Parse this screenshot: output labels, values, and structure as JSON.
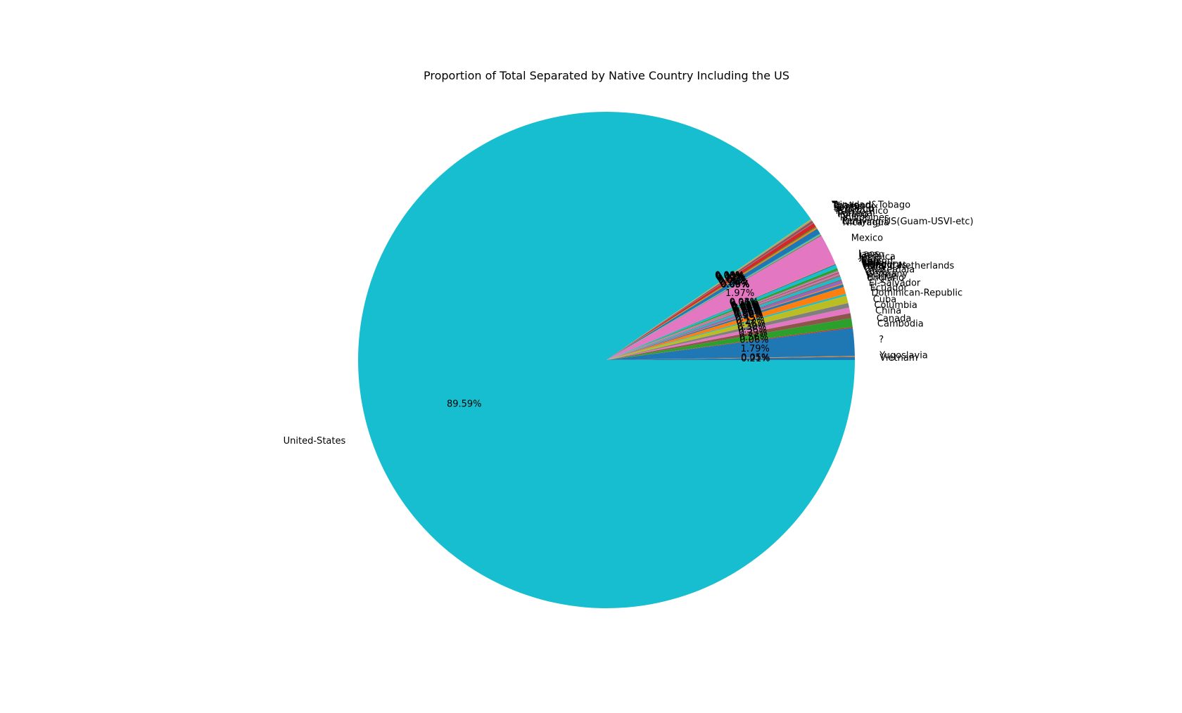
{
  "chart_data": {
    "type": "pie",
    "title": "Proportion of Total Separated by Native Country Including the US",
    "start_angle_deg": 0,
    "direction": "counterclockwise",
    "slices": [
      {
        "label": "Vietnam",
        "value": 0.21,
        "color": "#1f77b4"
      },
      {
        "label": "Yugoslavia",
        "value": 0.05,
        "color": "#ff7f0e"
      },
      {
        "label": "?",
        "value": 1.79,
        "color": "#1f77b4"
      },
      {
        "label": "Cambodia",
        "value": 0.06,
        "color": "#d62728"
      },
      {
        "label": "Canada",
        "value": 0.56,
        "color": "#2ca02c"
      },
      {
        "label": "China",
        "value": 0.33,
        "color": "#8c564b"
      },
      {
        "label": "Columbia",
        "value": 0.36,
        "color": "#e377c2"
      },
      {
        "label": "Cuba",
        "value": 0.3,
        "color": "#7f7f7f"
      },
      {
        "label": "Dominican-Republic",
        "value": 0.48,
        "color": "#bcbd22"
      },
      {
        "label": "Ecuador",
        "value": 0.12,
        "color": "#17becf"
      },
      {
        "label": "El-Salvador",
        "value": 0.45,
        "color": "#ff7f0e"
      },
      {
        "label": "England",
        "value": 0.18,
        "color": "#1f77b4"
      },
      {
        "label": "France",
        "value": 0.06,
        "color": "#ff7f0e"
      },
      {
        "label": "Germany",
        "value": 0.2,
        "color": "#9467bd"
      },
      {
        "label": "Greece",
        "value": 0.06,
        "color": "#8c564b"
      },
      {
        "label": "Guatemala",
        "value": 0.18,
        "color": "#17becf"
      },
      {
        "label": "Haiti",
        "value": 0.15,
        "color": "#7f7f7f"
      },
      {
        "label": "Holand-Netherlands",
        "value": 0.0,
        "color": "#bcbd22"
      },
      {
        "label": "Honduras",
        "value": 0.06,
        "color": "#e377c2"
      },
      {
        "label": "Hong",
        "value": 0.03,
        "color": "#d62728"
      },
      {
        "label": "Hungary",
        "value": 0.03,
        "color": "#9467bd"
      },
      {
        "label": "India",
        "value": 0.06,
        "color": "#8c564b"
      },
      {
        "label": "Iran",
        "value": 0.06,
        "color": "#e377c2"
      },
      {
        "label": "Ireland",
        "value": 0.06,
        "color": "#7f7f7f"
      },
      {
        "label": "Italy",
        "value": 0.15,
        "color": "#2ca02c"
      },
      {
        "label": "Jamaica",
        "value": 0.21,
        "color": "#17becf"
      },
      {
        "label": "Japan",
        "value": 0.06,
        "color": "#1f77b4"
      },
      {
        "label": "Laos",
        "value": 0.03,
        "color": "#ff7f0e"
      },
      {
        "label": "Mexico",
        "value": 1.97,
        "color": "#e377c2"
      },
      {
        "label": "Nicaragua",
        "value": 0.09,
        "color": "#7f7f7f"
      },
      {
        "label": "Outlying-US(Guam-USVI-etc)",
        "value": 0.03,
        "color": "#bcbd22"
      },
      {
        "label": "Peru",
        "value": 0.06,
        "color": "#17becf"
      },
      {
        "label": "Philippines",
        "value": 0.36,
        "color": "#1f77b4"
      },
      {
        "label": "Poland",
        "value": 0.09,
        "color": "#ff7f0e"
      },
      {
        "label": "Portugal",
        "value": 0.06,
        "color": "#2ca02c"
      },
      {
        "label": "Puerto-Rico",
        "value": 0.27,
        "color": "#d62728"
      },
      {
        "label": "Scotland",
        "value": 0.03,
        "color": "#9467bd"
      },
      {
        "label": "South",
        "value": 0.15,
        "color": "#8c564b"
      },
      {
        "label": "Taiwan",
        "value": 0.03,
        "color": "#e377c2"
      },
      {
        "label": "Thailand",
        "value": 0.03,
        "color": "#7f7f7f"
      },
      {
        "label": "Trinadad&Tobago",
        "value": 0.06,
        "color": "#bcbd22"
      },
      {
        "label": "United-States",
        "value": 89.59,
        "color": "#17becf"
      }
    ],
    "percent_labels": [
      {
        "text": "0.21%",
        "slice": 0
      },
      {
        "text": "0.05%",
        "slice": 1
      },
      {
        "text": "1.79%",
        "slice": 2
      },
      {
        "text": "0.06%",
        "slice": 3
      },
      {
        "text": "0.56%",
        "slice": 4
      },
      {
        "text": "0.33%",
        "slice": 5
      },
      {
        "text": "0.36%",
        "slice": 6
      },
      {
        "text": "0.30%",
        "slice": 7
      },
      {
        "text": "0.48%",
        "slice": 8
      },
      {
        "text": "0.12%",
        "slice": 9
      },
      {
        "text": "0.45%",
        "slice": 10
      },
      {
        "text": "0.18%",
        "slice": 11
      },
      {
        "text": "0.06%",
        "slice": 12
      },
      {
        "text": "0.20%",
        "slice": 13
      },
      {
        "text": "0.06%",
        "slice": 14
      },
      {
        "text": "0.18%",
        "slice": 15
      },
      {
        "text": "0.15%",
        "slice": 16
      },
      {
        "text": "0.00%",
        "slice": 17
      },
      {
        "text": "0.06%",
        "slice": 18
      },
      {
        "text": "0.03%",
        "slice": 19
      },
      {
        "text": "0.03%",
        "slice": 20
      },
      {
        "text": "0.06%",
        "slice": 21
      },
      {
        "text": "0.06%",
        "slice": 22
      },
      {
        "text": "0.06%",
        "slice": 23
      },
      {
        "text": "0.15%",
        "slice": 24
      },
      {
        "text": "0.21%",
        "slice": 25
      },
      {
        "text": "0.06%",
        "slice": 26
      },
      {
        "text": "0.03%",
        "slice": 27
      },
      {
        "text": "1.97%",
        "slice": 28
      },
      {
        "text": "0.09%",
        "slice": 29
      },
      {
        "text": "0.03%",
        "slice": 30
      },
      {
        "text": "0.06%",
        "slice": 31
      },
      {
        "text": "0.36%",
        "slice": 32
      },
      {
        "text": "0.09%",
        "slice": 33
      },
      {
        "text": "0.06%",
        "slice": 34
      },
      {
        "text": "0.27%",
        "slice": 35
      },
      {
        "text": "0.03%",
        "slice": 36
      },
      {
        "text": "0.15%",
        "slice": 37
      },
      {
        "text": "0.03%",
        "slice": 38
      },
      {
        "text": "0.03%",
        "slice": 39
      },
      {
        "text": "0.06%",
        "slice": 40
      },
      {
        "text": "89.59%",
        "slice": 41
      }
    ]
  }
}
